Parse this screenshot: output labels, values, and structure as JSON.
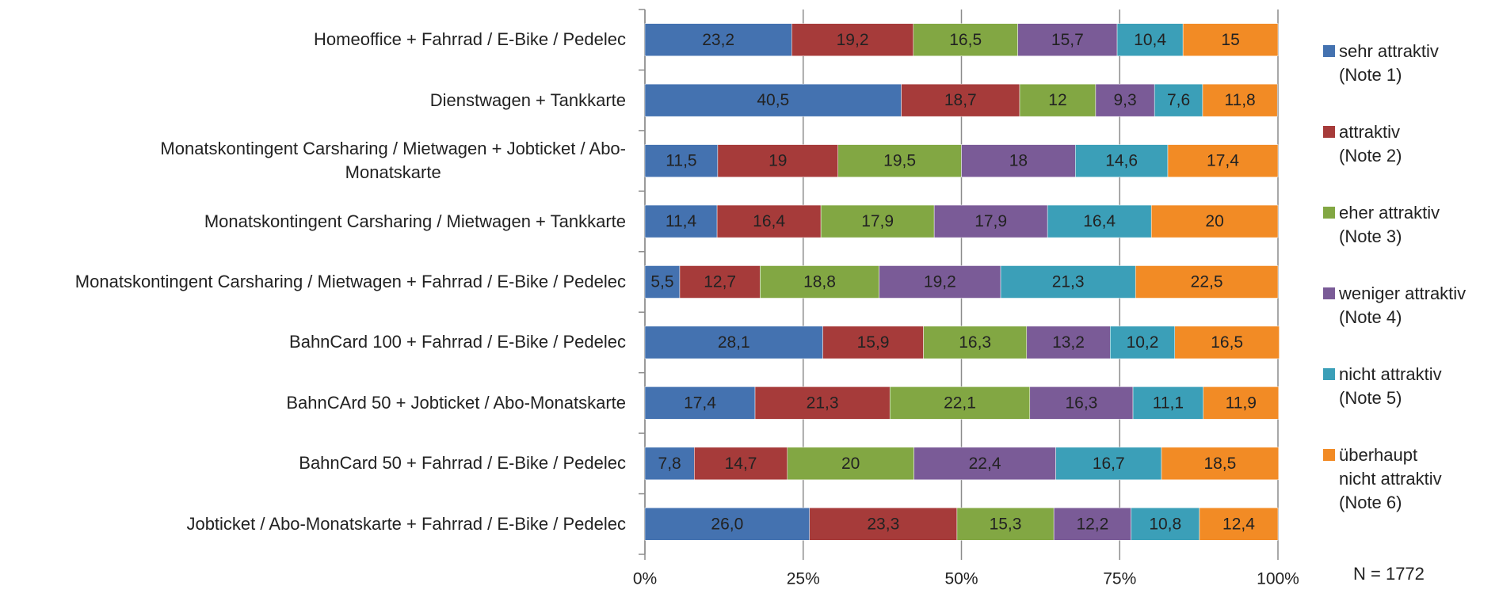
{
  "chart_data": {
    "type": "stacked_barh",
    "categories": [
      "Homeoffice + Fahrrad / E-Bike / Pedelec",
      "Dienstwagen + Tankkarte",
      "Monatskontingent Carsharing / Mietwagen + Jobticket / Abo-\nMonatskarte",
      "Monatskontingent Carsharing / Mietwagen + Tankkarte",
      "Monatskontingent Carsharing / Mietwagen + Fahrrad / E-Bike / Pedelec",
      "BahnCard 100 + Fahrrad / E-Bike / Pedelec",
      "BahnCArd 50 + Jobticket / Abo-Monatskarte",
      "BahnCard 50 + Fahrrad / E-Bike / Pedelec",
      "Jobticket / Abo-Monatskarte + Fahrrad / E-Bike / Pedelec"
    ],
    "series": [
      {
        "name": "sehr attraktiv\n(Note 1)",
        "color": "#4472b0",
        "values": [
          23.2,
          40.5,
          11.5,
          11.4,
          5.5,
          28.1,
          17.4,
          7.8,
          26.0
        ],
        "value_labels": [
          "23,2",
          "40,5",
          "11,5",
          "11,4",
          "5,5",
          "28,1",
          "17,4",
          "7,8",
          "26,0"
        ]
      },
      {
        "name": "attraktiv\n(Note 2)",
        "color": "#a63b3a",
        "values": [
          19.2,
          18.7,
          19,
          16.4,
          12.7,
          15.9,
          21.3,
          14.7,
          23.3
        ],
        "value_labels": [
          "19,2",
          "18,7",
          "19",
          "16,4",
          "12,7",
          "15,9",
          "21,3",
          "14,7",
          "23,3"
        ]
      },
      {
        "name": "eher attraktiv\n(Note 3)",
        "color": "#82a743",
        "values": [
          16.5,
          12,
          19.5,
          17.9,
          18.8,
          16.3,
          22.1,
          20,
          15.3
        ],
        "value_labels": [
          "16,5",
          "12",
          "19,5",
          "17,9",
          "18,8",
          "16,3",
          "22,1",
          "20",
          "15,3"
        ]
      },
      {
        "name": "weniger attraktiv\n(Note 4)",
        "color": "#7a5b97",
        "values": [
          15.7,
          9.3,
          18,
          17.9,
          19.2,
          13.2,
          16.3,
          22.4,
          12.2
        ],
        "value_labels": [
          "15,7",
          "9,3",
          "18",
          "17,9",
          "19,2",
          "13,2",
          "16,3",
          "22,4",
          "12,2"
        ]
      },
      {
        "name": "nicht attraktiv\n(Note 5)",
        "color": "#3b9fb8",
        "values": [
          10.4,
          7.6,
          14.6,
          16.4,
          21.3,
          10.2,
          11.1,
          16.7,
          10.8
        ],
        "value_labels": [
          "10,4",
          "7,6",
          "14,6",
          "16,4",
          "21,3",
          "10,2",
          "11,1",
          "16,7",
          "10,8"
        ]
      },
      {
        "name": "überhaupt\nnicht attraktiv\n(Note 6)",
        "color": "#f28b25",
        "values": [
          15,
          11.8,
          17.4,
          20,
          22.5,
          16.5,
          11.9,
          18.5,
          12.4
        ],
        "value_labels": [
          "15",
          "11,8",
          "17,4",
          "20",
          "22,5",
          "16,5",
          "11,9",
          "18,5",
          "12,4"
        ]
      }
    ],
    "xlim": [
      0,
      100
    ],
    "xticks": [
      {
        "value": 0,
        "label": "0%"
      },
      {
        "value": 25,
        "label": "25%"
      },
      {
        "value": 50,
        "label": "50%"
      },
      {
        "value": 75,
        "label": "75%"
      },
      {
        "value": 100,
        "label": "100%"
      }
    ],
    "grid": true,
    "legend": "right",
    "annotation": "N = 1772"
  }
}
